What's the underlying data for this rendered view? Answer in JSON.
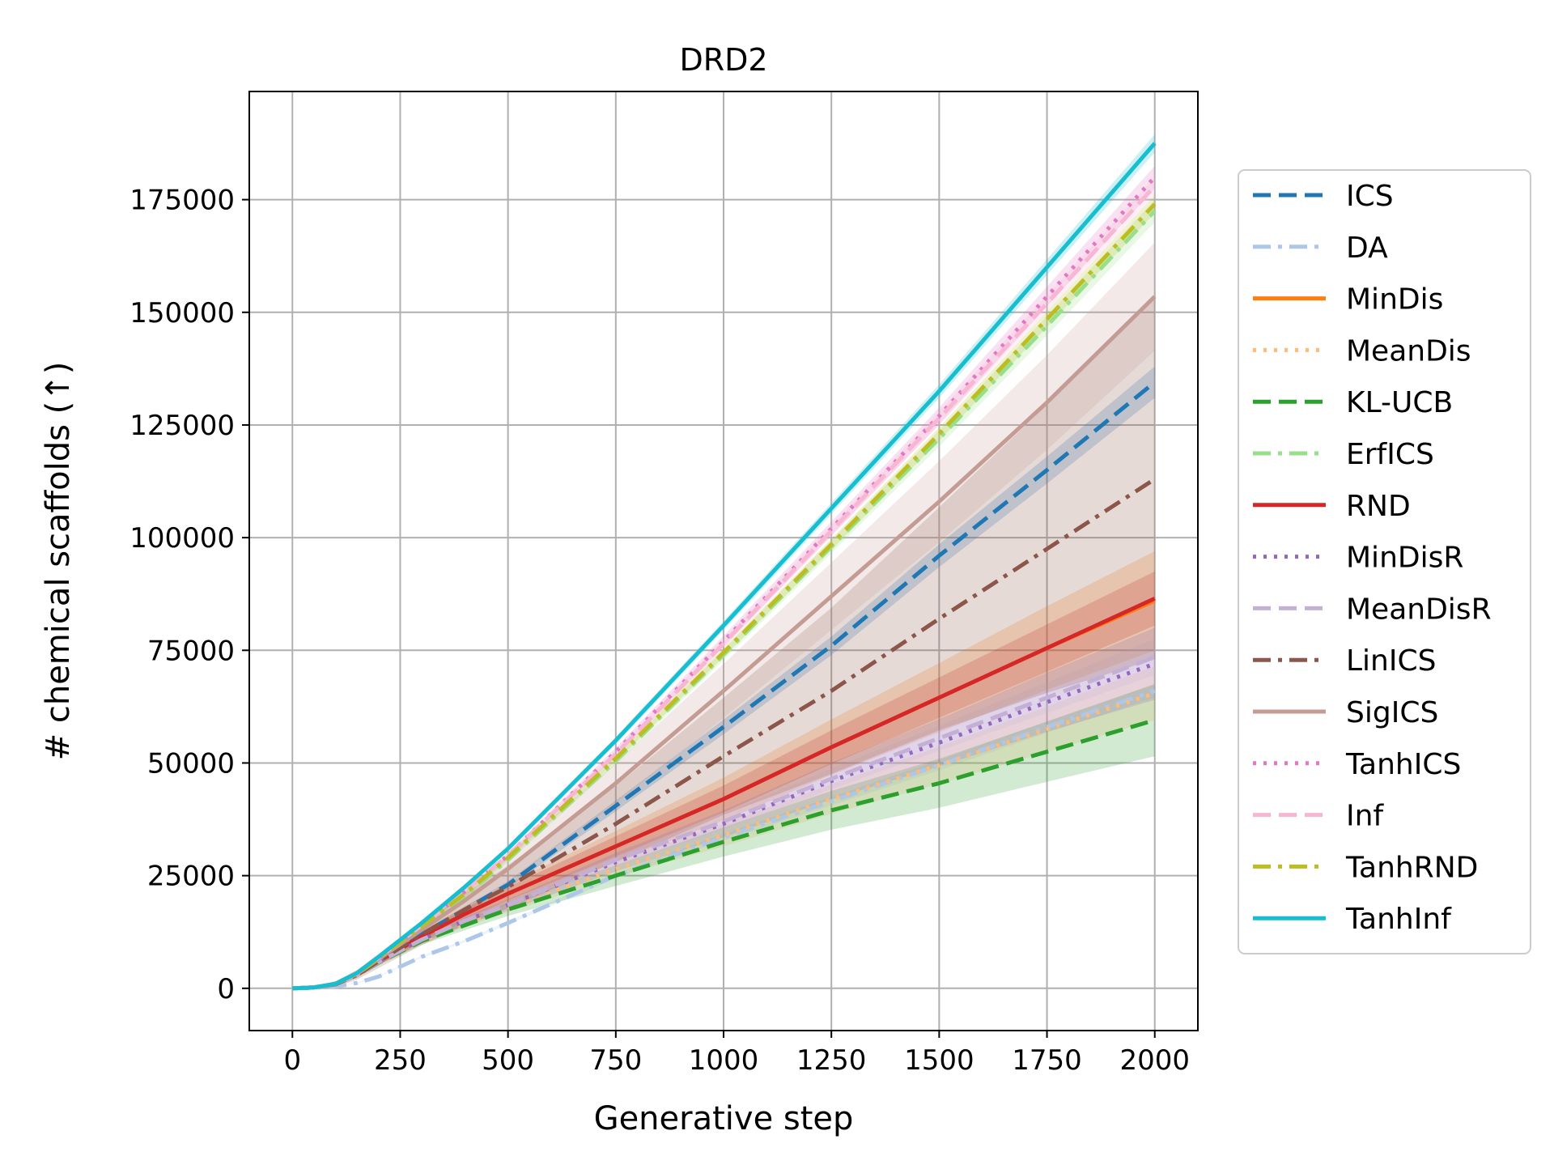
{
  "chart_data": {
    "type": "line",
    "title": "DRD2",
    "xlabel": "Generative step",
    "ylabel": "# chemical scaffolds (↑)",
    "xlim": [
      -100,
      2100
    ],
    "ylim": [
      -9375,
      199000
    ],
    "xticks": [
      0,
      250,
      500,
      750,
      1000,
      1250,
      1500,
      1750,
      2000
    ],
    "xtick_labels": [
      "0",
      "250",
      "500",
      "750",
      "1000",
      "1250",
      "1500",
      "1750",
      "2000"
    ],
    "yticks": [
      0,
      25000,
      50000,
      75000,
      100000,
      125000,
      150000,
      175000
    ],
    "ytick_labels": [
      "0",
      "25000",
      "50000",
      "75000",
      "100000",
      "125000",
      "150000",
      "175000"
    ],
    "grid": true,
    "legend_position": "outside-right",
    "x": [
      0,
      50,
      100,
      150,
      200,
      300,
      400,
      500,
      750,
      1000,
      1250,
      1500,
      1750,
      2000
    ],
    "series": [
      {
        "name": "ICS",
        "color": "#1f77b4",
        "dash": "dashed",
        "values": [
          0,
          200,
          900,
          3000,
          6000,
          12000,
          17500,
          23000,
          40500,
          58000,
          76000,
          96000,
          115000,
          134500
        ],
        "band": [
          3000,
          3500
        ]
      },
      {
        "name": "DA",
        "color": "#aec7e8",
        "dash": "dashdot",
        "values": [
          0,
          100,
          400,
          1200,
          2600,
          7000,
          10500,
          14500,
          25000,
          33500,
          41500,
          49500,
          58000,
          66000
        ],
        "band": [
          1500,
          1500
        ]
      },
      {
        "name": "MinDis",
        "color": "#ff7f0e",
        "dash": "solid",
        "values": [
          0,
          200,
          900,
          3000,
          6000,
          11500,
          16500,
          21000,
          31500,
          42000,
          53500,
          64500,
          75500,
          86000
        ],
        "band": [
          8000,
          11000
        ]
      },
      {
        "name": "MeanDis",
        "color": "#ffbb78",
        "dash": "dotted",
        "values": [
          0,
          200,
          900,
          2900,
          5700,
          10500,
          14500,
          18000,
          26500,
          34000,
          42000,
          49500,
          57500,
          65500
        ],
        "band": [
          4000,
          6000
        ]
      },
      {
        "name": "KL-UCB",
        "color": "#2ca02c",
        "dash": "dashed",
        "values": [
          0,
          200,
          900,
          2900,
          5700,
          10500,
          14000,
          17500,
          25000,
          32500,
          39500,
          45500,
          52500,
          59500
        ],
        "band": [
          5000,
          8000
        ]
      },
      {
        "name": "ErfICS",
        "color": "#98df8a",
        "dash": "dashdot",
        "values": [
          0,
          200,
          1000,
          3200,
          6600,
          13500,
          20500,
          28500,
          50500,
          74000,
          98000,
          122000,
          147000,
          172500
        ],
        "band": [
          2000,
          2500
        ]
      },
      {
        "name": "RND",
        "color": "#d62728",
        "dash": "solid",
        "values": [
          0,
          200,
          900,
          3000,
          6000,
          11500,
          16500,
          21000,
          31500,
          42000,
          53500,
          64500,
          75500,
          86500
        ],
        "band": [
          6000,
          6000
        ]
      },
      {
        "name": "MinDisR",
        "color": "#9467bd",
        "dash": "dotted",
        "values": [
          0,
          200,
          900,
          2900,
          5800,
          10800,
          15000,
          18500,
          28000,
          36500,
          46000,
          54500,
          63500,
          72000
        ],
        "band": [
          4000,
          8000
        ]
      },
      {
        "name": "MeanDisR",
        "color": "#c5b0d5",
        "dash": "dashed",
        "values": [
          0,
          200,
          900,
          2900,
          5800,
          10800,
          15000,
          18500,
          28500,
          37000,
          46500,
          55500,
          64500,
          73500
        ],
        "band": [
          3000,
          4000
        ]
      },
      {
        "name": "LinICS",
        "color": "#8c564b",
        "dash": "dashdot",
        "values": [
          0,
          200,
          900,
          3000,
          6000,
          12000,
          17500,
          22500,
          36500,
          51500,
          66000,
          82000,
          97500,
          113000
        ],
        "band": [
          12000,
          40000
        ]
      },
      {
        "name": "SigICS",
        "color": "#c49c94",
        "dash": "solid",
        "values": [
          0,
          200,
          1000,
          3200,
          6500,
          13000,
          19500,
          26500,
          45500,
          66000,
          87000,
          108000,
          130000,
          153500
        ],
        "band": [
          12000,
          12000
        ]
      },
      {
        "name": "TanhICS",
        "color": "#e377c2",
        "dash": "dotted",
        "values": [
          0,
          200,
          1000,
          3300,
          6800,
          14000,
          21500,
          29500,
          52500,
          77000,
          102000,
          127000,
          153500,
          180000
        ],
        "band": [
          2500,
          2500
        ]
      },
      {
        "name": "Inf",
        "color": "#f7b6d2",
        "dash": "dashed",
        "values": [
          0,
          200,
          1000,
          3300,
          6800,
          14000,
          21500,
          29500,
          52000,
          76500,
          101500,
          126500,
          152000,
          178000
        ],
        "band": [
          2000,
          2000
        ]
      },
      {
        "name": "TanhRND",
        "color": "#bcbd22",
        "dash": "dashdot",
        "values": [
          0,
          200,
          1000,
          3200,
          6700,
          13700,
          21000,
          29000,
          51000,
          74500,
          98500,
          123000,
          148500,
          174000
        ],
        "band": [
          2000,
          2000
        ]
      },
      {
        "name": "TanhInf",
        "color": "#17becf",
        "dash": "solid",
        "values": [
          0,
          200,
          1000,
          3400,
          7000,
          14500,
          22500,
          31000,
          55000,
          80500,
          106500,
          132500,
          160000,
          187500
        ],
        "band": [
          2000,
          2000
        ]
      }
    ]
  }
}
